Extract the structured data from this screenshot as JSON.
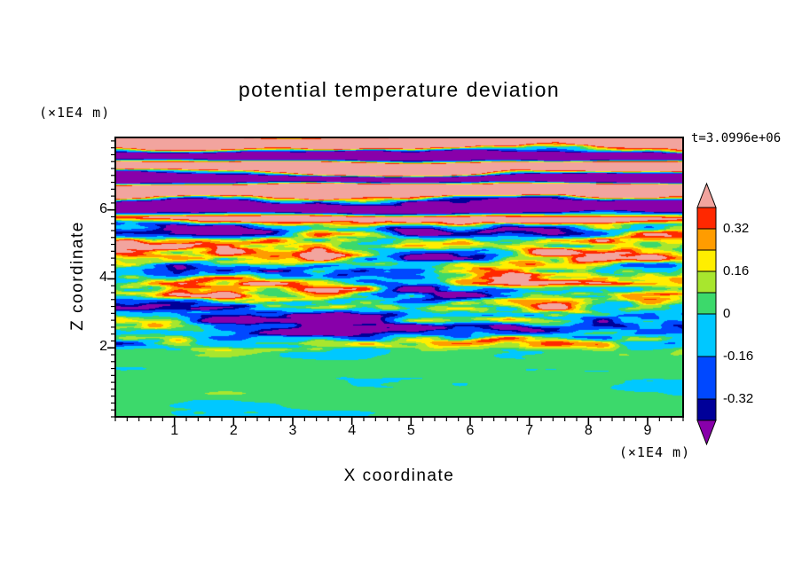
{
  "chart_data": {
    "type": "heatmap",
    "title": "potential temperature deviation",
    "timestamp": "t=3.0996e+06",
    "x_axis": {
      "label": "X coordinate",
      "unit": "(×1E4 m)",
      "range": [
        0,
        9.6
      ],
      "major_ticks": [
        1,
        2,
        3,
        4,
        5,
        6,
        7,
        8,
        9
      ],
      "minor_step": 0.2
    },
    "z_axis": {
      "label": "Z coordinate",
      "unit": "(×1E4 m)",
      "range": [
        0,
        8.1
      ],
      "major_ticks": [
        2,
        4,
        6
      ],
      "minor_step": 0.2
    },
    "colorbar": {
      "orientation": "vertical",
      "position": "right",
      "labels": [
        "0.32",
        "0.16",
        "0",
        "-0.16",
        "-0.32"
      ],
      "label_values": [
        0.32,
        0.16,
        0,
        -0.16,
        -0.32
      ],
      "over_color": "#F2A49E",
      "under_color": "#8800AA"
    },
    "palette": {
      "levels": [
        -0.4,
        -0.32,
        -0.16,
        0,
        0.08,
        0.16,
        0.24,
        0.32,
        0.4
      ],
      "colors": [
        "#8800AA",
        "#000099",
        "#0048FF",
        "#00C8FF",
        "#3CD96B",
        "#A8E62E",
        "#FFEE00",
        "#FF9C00",
        "#FF2800",
        "#F2A49E"
      ]
    },
    "field": {
      "render_hint": "procedural approximation of the turbulent temperature-deviation field: near-zero (green) below z=2, strong thin turbulent streaks for 2<z<6, saturated alternating over/under bands (salmon/purple) above z=6",
      "seed": 77,
      "base": 0.025,
      "amp_low": 0.055,
      "amp_high": 0.56,
      "turb_gain": 1.5,
      "turb_ramp": [
        1.7,
        2.35
      ],
      "band_blend": [
        5.3,
        6.1
      ],
      "band_freq": 8.0,
      "band_amp": 0.95,
      "band_noise": 2.4,
      "slow_scale": [
        0.22,
        0.55
      ],
      "octaves": [
        {
          "fx": 0.55,
          "fz": 2.8,
          "w": 1.0
        },
        {
          "fx": 1.25,
          "fz": 5.6,
          "w": 0.55
        },
        {
          "fx": 2.5,
          "fz": 11.0,
          "w": 0.28
        }
      ]
    }
  }
}
